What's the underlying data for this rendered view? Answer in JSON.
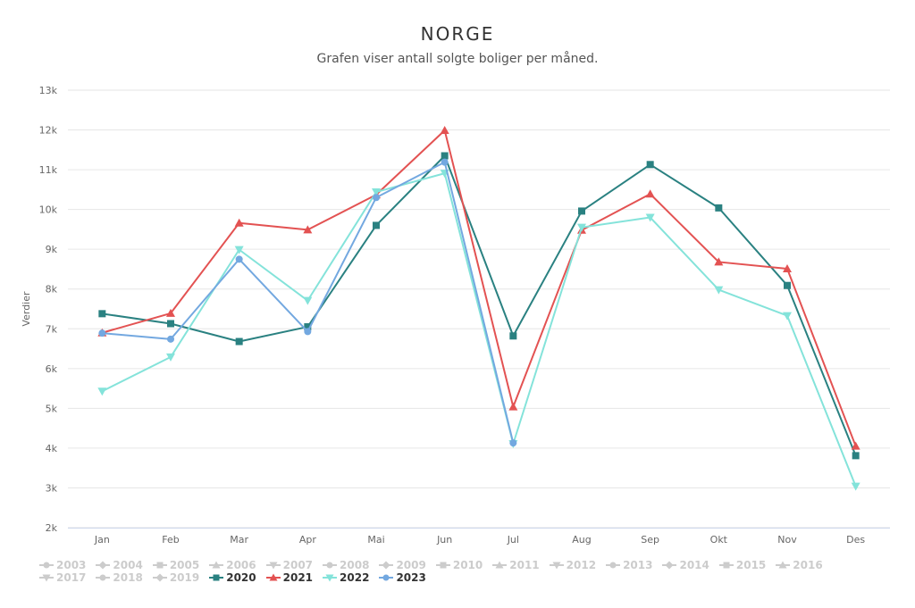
{
  "chart_data": {
    "type": "line",
    "title": "NORGE",
    "subtitle": "Grafen viser antall solgte boliger per måned.",
    "ylabel": "Verdier",
    "xlabel": "",
    "ylim": [
      2000,
      13000
    ],
    "yticks": [
      2000,
      3000,
      4000,
      5000,
      6000,
      7000,
      8000,
      9000,
      10000,
      11000,
      12000,
      13000
    ],
    "ytick_labels": [
      "2k",
      "3k",
      "4k",
      "5k",
      "6k",
      "7k",
      "8k",
      "9k",
      "10k",
      "11k",
      "12k",
      "13k"
    ],
    "categories": [
      "Jan",
      "Feb",
      "Mar",
      "Apr",
      "Mai",
      "Jun",
      "Jul",
      "Aug",
      "Sep",
      "Okt",
      "Nov",
      "Des"
    ],
    "grid": "horizontal",
    "legend_position": "bottom-left",
    "series": [
      {
        "name": "2020",
        "color": "#2a8181",
        "marker": "square",
        "values": [
          7380,
          7130,
          6680,
          7050,
          9600,
          11350,
          6820,
          9960,
          11130,
          10040,
          8090,
          3810
        ]
      },
      {
        "name": "2021",
        "color": "#e35252",
        "marker": "triangle",
        "values": [
          6900,
          7390,
          9660,
          9490,
          10370,
          11990,
          5040,
          9480,
          10390,
          8680,
          8510,
          4050
        ]
      },
      {
        "name": "2022",
        "color": "#84e3da",
        "marker": "triangle-down",
        "values": [
          5430,
          6290,
          8990,
          7710,
          10440,
          10910,
          4110,
          9550,
          9800,
          7980,
          7330,
          3040
        ]
      },
      {
        "name": "2023",
        "color": "#73a8e0",
        "marker": "circle",
        "values": [
          6890,
          6740,
          8750,
          6930,
          10300,
          11190,
          4130,
          null,
          null,
          null,
          null,
          null
        ]
      }
    ]
  },
  "legend": {
    "rows": [
      [
        {
          "label": "2003",
          "marker": "circle",
          "active": false,
          "color": "#cccccc"
        },
        {
          "label": "2004",
          "marker": "diamond",
          "active": false,
          "color": "#cccccc"
        },
        {
          "label": "2005",
          "marker": "square",
          "active": false,
          "color": "#cccccc"
        },
        {
          "label": "2006",
          "marker": "triangle",
          "active": false,
          "color": "#cccccc"
        },
        {
          "label": "2007",
          "marker": "triangle-down",
          "active": false,
          "color": "#cccccc"
        },
        {
          "label": "2008",
          "marker": "circle",
          "active": false,
          "color": "#cccccc"
        },
        {
          "label": "2009",
          "marker": "diamond",
          "active": false,
          "color": "#cccccc"
        },
        {
          "label": "2010",
          "marker": "square",
          "active": false,
          "color": "#cccccc"
        },
        {
          "label": "2011",
          "marker": "triangle",
          "active": false,
          "color": "#cccccc"
        },
        {
          "label": "2012",
          "marker": "triangle-down",
          "active": false,
          "color": "#cccccc"
        },
        {
          "label": "2013",
          "marker": "circle",
          "active": false,
          "color": "#cccccc"
        },
        {
          "label": "2014",
          "marker": "diamond",
          "active": false,
          "color": "#cccccc"
        },
        {
          "label": "2015",
          "marker": "square",
          "active": false,
          "color": "#cccccc"
        },
        {
          "label": "2016",
          "marker": "triangle",
          "active": false,
          "color": "#cccccc"
        }
      ],
      [
        {
          "label": "2017",
          "marker": "triangle-down",
          "active": false,
          "color": "#cccccc"
        },
        {
          "label": "2018",
          "marker": "circle",
          "active": false,
          "color": "#cccccc"
        },
        {
          "label": "2019",
          "marker": "diamond",
          "active": false,
          "color": "#cccccc"
        },
        {
          "label": "2020",
          "marker": "square",
          "active": true,
          "color": "#2a8181"
        },
        {
          "label": "2021",
          "marker": "triangle",
          "active": true,
          "color": "#e35252"
        },
        {
          "label": "2022",
          "marker": "triangle-down",
          "active": true,
          "color": "#84e3da"
        },
        {
          "label": "2023",
          "marker": "circle",
          "active": true,
          "color": "#73a8e0"
        }
      ]
    ]
  }
}
